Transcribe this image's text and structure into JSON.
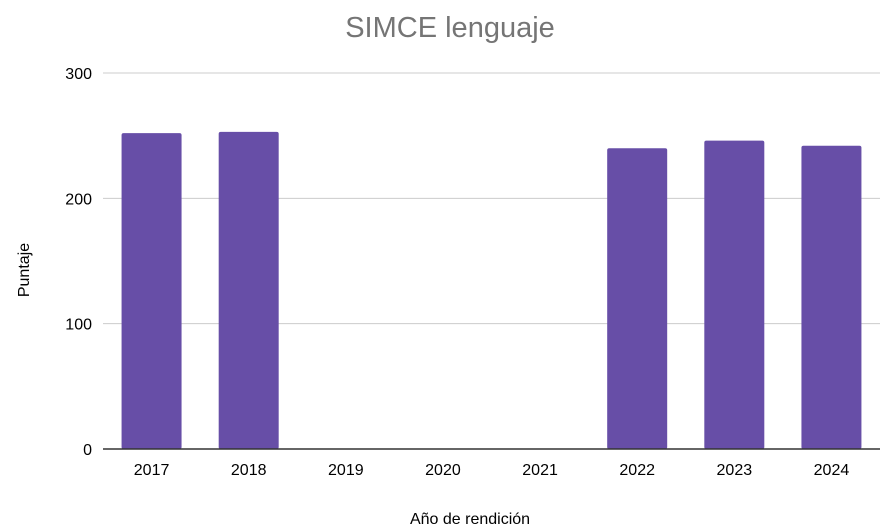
{
  "chart_data": {
    "type": "bar",
    "title": "SIMCE lenguaje",
    "xlabel": "Año de rendición",
    "ylabel": "Puntaje",
    "categories": [
      "2017",
      "2018",
      "2019",
      "2020",
      "2021",
      "2022",
      "2023",
      "2024"
    ],
    "values": [
      252,
      253,
      null,
      null,
      null,
      240,
      246,
      242
    ],
    "ylim": [
      0,
      300
    ],
    "yticks": [
      "0",
      "100",
      "200",
      "300"
    ],
    "grid": true,
    "legend": "none",
    "bar_color": "#674ea7"
  }
}
